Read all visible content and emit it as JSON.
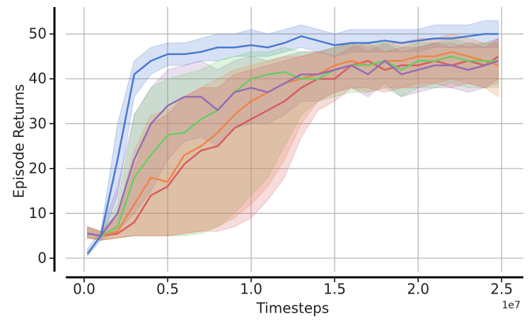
{
  "chart_data": {
    "type": "line",
    "xlabel": "Timesteps",
    "ylabel": "Episode Returns",
    "x_offset_label": "1e7",
    "x": [
      0.02,
      0.1,
      0.2,
      0.3,
      0.4,
      0.5,
      0.6,
      0.7,
      0.8,
      0.9,
      1.0,
      1.1,
      1.2,
      1.3,
      1.4,
      1.5,
      1.6,
      1.7,
      1.8,
      1.9,
      2.0,
      2.1,
      2.2,
      2.3,
      2.4,
      2.48
    ],
    "xlim": [
      -0.11,
      2.63
    ],
    "xticks": [
      {
        "value": 0,
        "label": "0.0"
      },
      0.5,
      {
        "value": 1,
        "label": "1.0"
      },
      1.5,
      {
        "value": 2,
        "label": "2.0"
      },
      2.5
    ],
    "ylim": [
      -3,
      56
    ],
    "yticks": [
      0,
      10,
      20,
      30,
      40,
      50
    ],
    "grid": true,
    "series": [
      {
        "color": "#4878d0",
        "values": [
          1,
          5,
          22,
          41,
          44,
          45.5,
          45.5,
          46,
          47,
          47,
          47.5,
          47,
          48,
          49.5,
          48.5,
          47.5,
          48,
          48,
          48.5,
          48,
          48.5,
          49,
          49,
          49.5,
          50,
          50
        ],
        "lower": [
          0.5,
          4,
          14,
          36,
          41,
          43,
          43,
          44,
          44,
          45,
          45,
          45,
          46,
          47,
          46,
          45,
          46,
          46,
          46,
          46,
          46,
          47,
          47,
          47,
          47,
          47
        ],
        "upper": [
          2,
          6,
          30,
          44,
          47,
          48,
          48,
          49,
          50,
          50,
          51,
          50,
          51,
          52,
          51,
          50,
          51,
          51,
          51,
          51,
          51,
          52,
          52,
          52,
          53,
          53
        ]
      },
      {
        "color": "#956cb4",
        "values": [
          5.5,
          5,
          10,
          22,
          30,
          34,
          36,
          36,
          33,
          37,
          38,
          37,
          39,
          41,
          41,
          42,
          43,
          41,
          44,
          41,
          42,
          43,
          43,
          42,
          43,
          44
        ],
        "lower": [
          4.5,
          4,
          6,
          10,
          15,
          22,
          26,
          27,
          25,
          29,
          30,
          30,
          32,
          35,
          35,
          37,
          38,
          36,
          39,
          36,
          37,
          38,
          38,
          37,
          38,
          39
        ],
        "upper": [
          7,
          6,
          16,
          32,
          38,
          42,
          43,
          44,
          42,
          44,
          45,
          44,
          45,
          46,
          46,
          47,
          48,
          46,
          48,
          46,
          47,
          48,
          48,
          47,
          48,
          49
        ]
      },
      {
        "color": "#6acc64",
        "values": [
          5.5,
          5,
          7,
          18,
          23,
          27.5,
          28,
          31,
          33,
          37,
          40,
          41,
          41.5,
          40,
          40,
          42,
          43,
          43,
          44,
          42,
          44,
          44,
          45,
          44,
          44,
          44
        ],
        "lower": [
          4.5,
          4,
          4.5,
          5,
          5,
          5,
          5,
          5.5,
          7,
          10,
          14,
          18,
          25,
          32,
          35,
          36,
          37,
          37,
          38,
          36,
          38,
          38,
          39,
          38,
          38,
          38
        ],
        "upper": [
          7,
          6,
          12,
          32,
          38,
          40,
          41,
          42,
          44,
          45,
          46,
          46,
          47,
          46,
          46,
          47,
          48,
          48,
          48,
          47,
          48,
          48,
          49,
          48,
          48,
          48
        ]
      },
      {
        "color": "#ee854a",
        "values": [
          5.5,
          5,
          6,
          12,
          18,
          17,
          23,
          25,
          28,
          32,
          35,
          37,
          39,
          40,
          41,
          43,
          44,
          43,
          44,
          44,
          45,
          45,
          46,
          45,
          44,
          43
        ],
        "lower": [
          4.5,
          4,
          4.5,
          5,
          5,
          5,
          5.5,
          6,
          7,
          9,
          12,
          16,
          22,
          30,
          35,
          37,
          38,
          37,
          38,
          38,
          39,
          39,
          40,
          39,
          38,
          36
        ],
        "upper": [
          7,
          6,
          10,
          24,
          32,
          33,
          36,
          38,
          40,
          42,
          43,
          44,
          45,
          45,
          46,
          47,
          48,
          47,
          48,
          48,
          49,
          49,
          50,
          49,
          48,
          48
        ]
      },
      {
        "color": "#d65f5f",
        "values": [
          5.5,
          5,
          5.5,
          8,
          14,
          16,
          21,
          24,
          25,
          29,
          31,
          33,
          35,
          38,
          40,
          40,
          43,
          44,
          42,
          43,
          43,
          44,
          43,
          44,
          43,
          45
        ],
        "lower": [
          4.5,
          4,
          4.5,
          5,
          5,
          5,
          5.5,
          6,
          6,
          7,
          9,
          13,
          18,
          27,
          33,
          35,
          38,
          38,
          37,
          38,
          38,
          39,
          38,
          39,
          38,
          40
        ],
        "upper": [
          7,
          6,
          9,
          20,
          30,
          32,
          36,
          38,
          38,
          41,
          42,
          43,
          44,
          45,
          46,
          45,
          47,
          48,
          46,
          47,
          47,
          48,
          47,
          48,
          47,
          49
        ]
      }
    ]
  }
}
